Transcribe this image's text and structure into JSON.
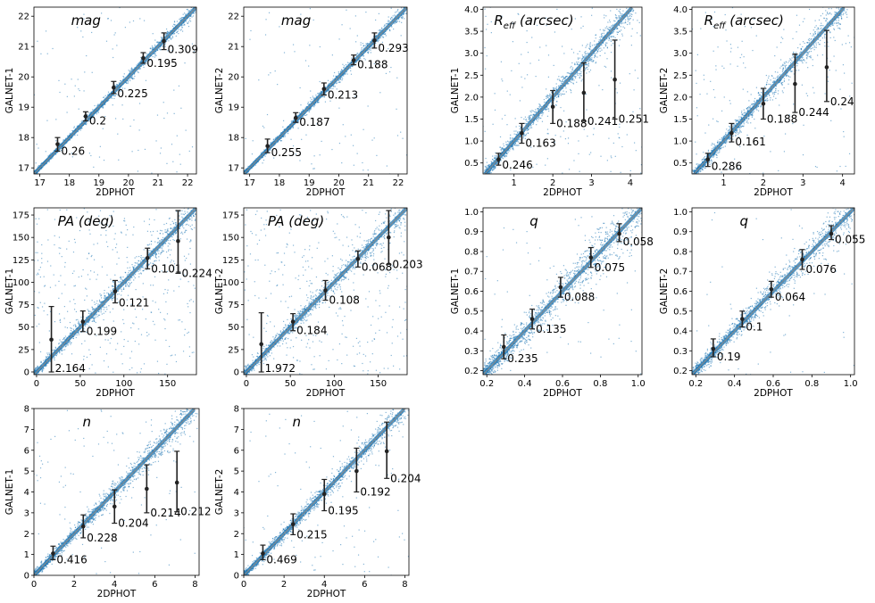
{
  "colors": {
    "scatter": "#1f77b4",
    "identity_line": "#888888",
    "errorbar": "#222222"
  },
  "chart_data": [
    {
      "type": "scatter",
      "title": "mag",
      "xlabel": "2DPHOT",
      "ylabel": "GALNET-1",
      "xlim": [
        16.8,
        22.3
      ],
      "ylim": [
        16.8,
        22.3
      ],
      "xticks": [
        17,
        18,
        19,
        20,
        21,
        22
      ],
      "yticks": [
        17,
        18,
        19,
        20,
        21,
        22
      ],
      "tick_labels_x": [
        "17",
        "18",
        "19",
        "20",
        "21",
        "22"
      ],
      "tick_labels_y": [
        "17",
        "18",
        "19",
        "20",
        "21",
        "22"
      ],
      "spread": 0.06,
      "outlier_frac": 0.02,
      "errorbars": [
        {
          "x": 17.6,
          "y": 17.78,
          "lo": 17.55,
          "hi": 18.0,
          "label": "0.26"
        },
        {
          "x": 18.55,
          "y": 18.7,
          "lo": 18.55,
          "hi": 18.85,
          "label": "0.2"
        },
        {
          "x": 19.5,
          "y": 19.65,
          "lo": 19.45,
          "hi": 19.85,
          "label": "0.225"
        },
        {
          "x": 20.5,
          "y": 20.62,
          "lo": 20.45,
          "hi": 20.8,
          "label": "0.195"
        },
        {
          "x": 21.2,
          "y": 21.18,
          "lo": 20.9,
          "hi": 21.45,
          "label": "0.309"
        }
      ]
    },
    {
      "type": "scatter",
      "title": "mag",
      "xlabel": "2DPHOT",
      "ylabel": "GALNET-2",
      "xlim": [
        16.8,
        22.3
      ],
      "ylim": [
        16.8,
        22.3
      ],
      "xticks": [
        17,
        18,
        19,
        20,
        21,
        22
      ],
      "yticks": [
        17,
        18,
        19,
        20,
        21,
        22
      ],
      "tick_labels_x": [
        "17",
        "18",
        "19",
        "20",
        "21",
        "22"
      ],
      "tick_labels_y": [
        "17",
        "18",
        "19",
        "20",
        "21",
        "22"
      ],
      "spread": 0.06,
      "outlier_frac": 0.02,
      "errorbars": [
        {
          "x": 17.6,
          "y": 17.72,
          "lo": 17.5,
          "hi": 17.95,
          "label": "0.255"
        },
        {
          "x": 18.55,
          "y": 18.65,
          "lo": 18.5,
          "hi": 18.82,
          "label": "0.187"
        },
        {
          "x": 19.5,
          "y": 19.6,
          "lo": 19.4,
          "hi": 19.8,
          "label": "0.213"
        },
        {
          "x": 20.5,
          "y": 20.55,
          "lo": 20.4,
          "hi": 20.72,
          "label": "0.188"
        },
        {
          "x": 21.2,
          "y": 21.2,
          "lo": 20.95,
          "hi": 21.45,
          "label": "0.293"
        }
      ]
    },
    {
      "type": "scatter",
      "title": "R_eff (arcsec)",
      "title_main": "R",
      "title_sub": "eff",
      "title_rest": " (arcsec)",
      "xlabel": "2DPHOT",
      "ylabel": "GALNET-1",
      "xlim": [
        0.2,
        4.3
      ],
      "ylim": [
        0.25,
        4.05
      ],
      "xticks": [
        1,
        2,
        3,
        4
      ],
      "yticks": [
        0.5,
        1.0,
        1.5,
        2.0,
        2.5,
        3.0,
        3.5,
        4.0
      ],
      "tick_labels_x": [
        "1",
        "2",
        "3",
        "4"
      ],
      "tick_labels_y": [
        "0.5",
        "1.0",
        "1.5",
        "2.0",
        "2.5",
        "3.0",
        "3.5",
        "4.0"
      ],
      "spread": 0.09,
      "outlier_frac": 0.03,
      "errorbars": [
        {
          "x": 0.6,
          "y": 0.58,
          "lo": 0.45,
          "hi": 0.72,
          "label": "0.246"
        },
        {
          "x": 1.2,
          "y": 1.18,
          "lo": 0.95,
          "hi": 1.4,
          "label": "0.163"
        },
        {
          "x": 2.0,
          "y": 1.78,
          "lo": 1.4,
          "hi": 2.15,
          "label": "0.188"
        },
        {
          "x": 2.8,
          "y": 2.1,
          "lo": 1.45,
          "hi": 2.78,
          "label": "0.241"
        },
        {
          "x": 3.6,
          "y": 2.4,
          "lo": 1.5,
          "hi": 3.3,
          "label": "0.251"
        }
      ]
    },
    {
      "type": "scatter",
      "title": "R_eff (arcsec)",
      "title_main": "R",
      "title_sub": "eff",
      "title_rest": " (arcsec)",
      "xlabel": "2DPHOT",
      "ylabel": "GALNET-2",
      "xlim": [
        0.2,
        4.3
      ],
      "ylim": [
        0.25,
        4.05
      ],
      "xticks": [
        1,
        2,
        3,
        4
      ],
      "yticks": [
        0.5,
        1.0,
        1.5,
        2.0,
        2.5,
        3.0,
        3.5,
        4.0
      ],
      "tick_labels_x": [
        "1",
        "2",
        "3",
        "4"
      ],
      "tick_labels_y": [
        "0.5",
        "1.0",
        "1.5",
        "2.0",
        "2.5",
        "3.0",
        "3.5",
        "4.0"
      ],
      "spread": 0.09,
      "outlier_frac": 0.03,
      "errorbars": [
        {
          "x": 0.6,
          "y": 0.58,
          "lo": 0.42,
          "hi": 0.72,
          "label": "0.286"
        },
        {
          "x": 1.2,
          "y": 1.18,
          "lo": 0.98,
          "hi": 1.4,
          "label": "0.161"
        },
        {
          "x": 2.0,
          "y": 1.85,
          "lo": 1.5,
          "hi": 2.2,
          "label": "0.188"
        },
        {
          "x": 2.8,
          "y": 2.3,
          "lo": 1.65,
          "hi": 2.98,
          "label": "0.244"
        },
        {
          "x": 3.6,
          "y": 2.68,
          "lo": 1.9,
          "hi": 3.52,
          "label": "0.24"
        }
      ]
    },
    {
      "type": "scatter",
      "title": "PA (deg)",
      "xlabel": "2DPHOT",
      "ylabel": "GALNET-1",
      "xlim": [
        -3,
        183
      ],
      "ylim": [
        -3,
        183
      ],
      "xticks": [
        0,
        50,
        100,
        150
      ],
      "yticks": [
        0,
        25,
        50,
        75,
        100,
        125,
        150,
        175
      ],
      "tick_labels_x": [
        "0",
        "50",
        "100",
        "150"
      ],
      "tick_labels_y": [
        "0",
        "25",
        "50",
        "75",
        "100",
        "125",
        "150",
        "175"
      ],
      "spread": 4,
      "outlier_frac": 0.06,
      "errorbars": [
        {
          "x": 17,
          "y": 36,
          "lo": 0,
          "hi": 73,
          "label": "2.164"
        },
        {
          "x": 53,
          "y": 56,
          "lo": 45,
          "hi": 68,
          "label": "0.199"
        },
        {
          "x": 90,
          "y": 90,
          "lo": 77,
          "hi": 102,
          "label": "0.121"
        },
        {
          "x": 127,
          "y": 127,
          "lo": 115,
          "hi": 138,
          "label": "0.101"
        },
        {
          "x": 162,
          "y": 146,
          "lo": 110,
          "hi": 180,
          "label": "0.224"
        }
      ]
    },
    {
      "type": "scatter",
      "title": "PA (deg)",
      "xlabel": "2DPHOT",
      "ylabel": "GALNET-2",
      "xlim": [
        -3,
        183
      ],
      "ylim": [
        -3,
        183
      ],
      "xticks": [
        0,
        50,
        100,
        150
      ],
      "yticks": [
        0,
        25,
        50,
        75,
        100,
        125,
        150,
        175
      ],
      "tick_labels_x": [
        "0",
        "50",
        "100",
        "150"
      ],
      "tick_labels_y": [
        "0",
        "25",
        "50",
        "75",
        "100",
        "125",
        "150",
        "175"
      ],
      "spread": 4,
      "outlier_frac": 0.06,
      "errorbars": [
        {
          "x": 17,
          "y": 31,
          "lo": 0,
          "hi": 66,
          "label": "1.972"
        },
        {
          "x": 53,
          "y": 56,
          "lo": 46,
          "hi": 65,
          "label": "0.184"
        },
        {
          "x": 90,
          "y": 91,
          "lo": 80,
          "hi": 102,
          "label": "0.108"
        },
        {
          "x": 127,
          "y": 126,
          "lo": 117,
          "hi": 135,
          "label": "0.068"
        },
        {
          "x": 162,
          "y": 150,
          "lo": 120,
          "hi": 180,
          "label": "0.203"
        }
      ]
    },
    {
      "type": "scatter",
      "title": "q",
      "xlabel": "2DPHOT",
      "ylabel": "GALNET-1",
      "xlim": [
        0.18,
        1.02
      ],
      "ylim": [
        0.18,
        1.02
      ],
      "xticks": [
        0.2,
        0.4,
        0.6,
        0.8,
        1.0
      ],
      "yticks": [
        0.2,
        0.3,
        0.4,
        0.5,
        0.6,
        0.7,
        0.8,
        0.9,
        1.0
      ],
      "tick_labels_x": [
        "0.2",
        "0.4",
        "0.6",
        "0.8",
        "1.0"
      ],
      "tick_labels_y": [
        "0.2",
        "0.3",
        "0.4",
        "0.5",
        "0.6",
        "0.7",
        "0.8",
        "0.9",
        "1.0"
      ],
      "spread": 0.035,
      "outlier_frac": 0.01,
      "errorbars": [
        {
          "x": 0.29,
          "y": 0.32,
          "lo": 0.26,
          "hi": 0.38,
          "label": "0.235"
        },
        {
          "x": 0.44,
          "y": 0.46,
          "lo": 0.41,
          "hi": 0.51,
          "label": "0.135"
        },
        {
          "x": 0.59,
          "y": 0.62,
          "lo": 0.57,
          "hi": 0.67,
          "label": "0.088"
        },
        {
          "x": 0.75,
          "y": 0.77,
          "lo": 0.72,
          "hi": 0.82,
          "label": "0.075"
        },
        {
          "x": 0.9,
          "y": 0.89,
          "lo": 0.85,
          "hi": 0.94,
          "label": "0.058"
        }
      ]
    },
    {
      "type": "scatter",
      "title": "q",
      "xlabel": "2DPHOT",
      "ylabel": "GALNET-2",
      "xlim": [
        0.18,
        1.02
      ],
      "ylim": [
        0.18,
        1.02
      ],
      "xticks": [
        0.2,
        0.4,
        0.6,
        0.8,
        1.0
      ],
      "yticks": [
        0.2,
        0.3,
        0.4,
        0.5,
        0.6,
        0.7,
        0.8,
        0.9,
        1.0
      ],
      "tick_labels_x": [
        "0.2",
        "0.4",
        "0.6",
        "0.8",
        "1.0"
      ],
      "tick_labels_y": [
        "0.2",
        "0.3",
        "0.4",
        "0.5",
        "0.6",
        "0.7",
        "0.8",
        "0.9",
        "1.0"
      ],
      "spread": 0.025,
      "outlier_frac": 0.01,
      "errorbars": [
        {
          "x": 0.29,
          "y": 0.31,
          "lo": 0.27,
          "hi": 0.36,
          "label": "0.19"
        },
        {
          "x": 0.44,
          "y": 0.46,
          "lo": 0.42,
          "hi": 0.5,
          "label": "0.1"
        },
        {
          "x": 0.59,
          "y": 0.61,
          "lo": 0.57,
          "hi": 0.65,
          "label": "0.064"
        },
        {
          "x": 0.75,
          "y": 0.76,
          "lo": 0.71,
          "hi": 0.81,
          "label": "0.076"
        },
        {
          "x": 0.9,
          "y": 0.89,
          "lo": 0.86,
          "hi": 0.93,
          "label": "0.055"
        }
      ]
    },
    {
      "type": "scatter",
      "title": "n",
      "xlabel": "2DPHOT",
      "ylabel": "GALNET-1",
      "xlim": [
        0,
        8.2
      ],
      "ylim": [
        0,
        8.0
      ],
      "xticks": [
        0,
        2,
        4,
        6,
        8
      ],
      "yticks": [
        0,
        1,
        2,
        3,
        4,
        5,
        6,
        7,
        8
      ],
      "tick_labels_x": [
        "0",
        "2",
        "4",
        "6",
        "8"
      ],
      "tick_labels_y": [
        "0",
        "1",
        "2",
        "3",
        "4",
        "5",
        "6",
        "7",
        "8"
      ],
      "spread": 0.18,
      "outlier_frac": 0.02,
      "errorbars": [
        {
          "x": 0.95,
          "y": 1.05,
          "lo": 0.75,
          "hi": 1.4,
          "label": "0.416"
        },
        {
          "x": 2.45,
          "y": 2.35,
          "lo": 1.8,
          "hi": 2.9,
          "label": "0.228"
        },
        {
          "x": 4.0,
          "y": 3.3,
          "lo": 2.5,
          "hi": 4.1,
          "label": "0.204"
        },
        {
          "x": 5.6,
          "y": 4.15,
          "lo": 3.0,
          "hi": 5.3,
          "label": "0.214"
        },
        {
          "x": 7.1,
          "y": 4.45,
          "lo": 3.05,
          "hi": 5.95,
          "label": "0.212"
        }
      ]
    },
    {
      "type": "scatter",
      "title": "n",
      "xlabel": "2DPHOT",
      "ylabel": "GALNET-2",
      "xlim": [
        0,
        8.2
      ],
      "ylim": [
        0,
        8.0
      ],
      "xticks": [
        0,
        2,
        4,
        6,
        8
      ],
      "yticks": [
        0,
        1,
        2,
        3,
        4,
        5,
        6,
        7,
        8
      ],
      "tick_labels_x": [
        "0",
        "2",
        "4",
        "6",
        "8"
      ],
      "tick_labels_y": [
        "0",
        "1",
        "2",
        "3",
        "4",
        "5",
        "6",
        "7",
        "8"
      ],
      "spread": 0.15,
      "outlier_frac": 0.02,
      "errorbars": [
        {
          "x": 0.95,
          "y": 1.05,
          "lo": 0.75,
          "hi": 1.45,
          "label": "0.469"
        },
        {
          "x": 2.45,
          "y": 2.45,
          "lo": 1.95,
          "hi": 2.95,
          "label": "0.215"
        },
        {
          "x": 4.0,
          "y": 3.9,
          "lo": 3.1,
          "hi": 4.6,
          "label": "0.195"
        },
        {
          "x": 5.6,
          "y": 5.0,
          "lo": 4.0,
          "hi": 6.1,
          "label": "0.192"
        },
        {
          "x": 7.1,
          "y": 5.95,
          "lo": 4.65,
          "hi": 7.35,
          "label": "0.204"
        }
      ]
    }
  ]
}
